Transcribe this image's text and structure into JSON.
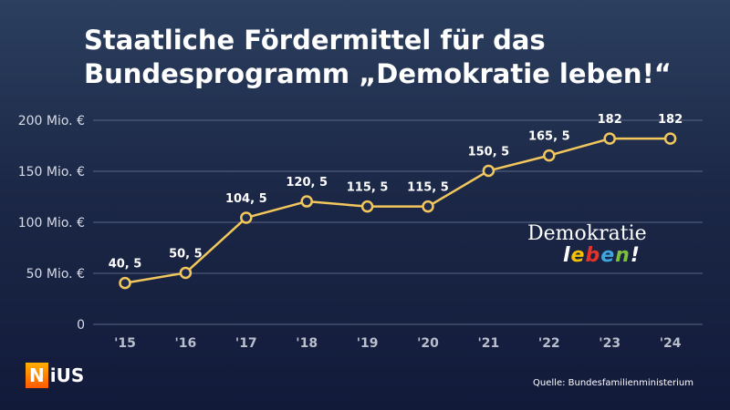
{
  "title_lines": [
    "Staatliche Fördermittel für das",
    "Bundesprogramm „Demokratie leben!“"
  ],
  "chart_data": {
    "type": "line",
    "x": [
      "'15",
      "'16",
      "'17",
      "'18",
      "'19",
      "'20",
      "'21",
      "'22",
      "'23",
      "'24"
    ],
    "values": [
      40.5,
      50.5,
      104.5,
      120.5,
      115.5,
      115.5,
      150.5,
      165.5,
      182,
      182
    ],
    "data_labels": [
      "40, 5",
      "50, 5",
      "104, 5",
      "120, 5",
      "115, 5",
      "115, 5",
      "150, 5",
      "165, 5",
      "182",
      "182"
    ],
    "y_ticks": [
      0,
      50,
      100,
      150,
      200
    ],
    "y_tick_labels": [
      "0",
      "50 Mio. €",
      "100 Mio. €",
      "150 Mio. €",
      "200 Mio. €"
    ],
    "ylim": [
      0,
      200
    ],
    "grid": true,
    "line_color": "#f2c75c",
    "marker_fill": "#1d2a4c"
  },
  "logo": {
    "line1": "Demokratie",
    "line2_letters": [
      "l",
      "e",
      "b",
      "e",
      "n",
      "!"
    ],
    "line2_colors": [
      "#ffffff",
      "#f6c200",
      "#e63329",
      "#3ea7e0",
      "#7fbf3f",
      "#ffffff"
    ]
  },
  "brand": {
    "first": "N",
    "rest": "iUS"
  },
  "source": "Quelle: Bundesfamilienministerium"
}
